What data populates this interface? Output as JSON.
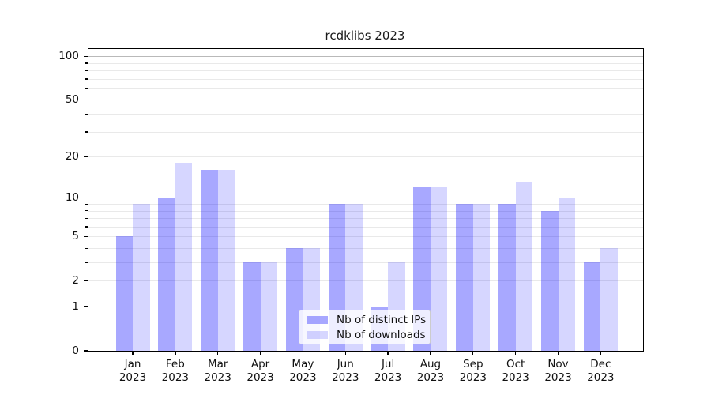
{
  "chart_data": {
    "type": "bar",
    "title": "rcdklibs 2023",
    "year": "2023",
    "categories": [
      "Jan",
      "Feb",
      "Mar",
      "Apr",
      "May",
      "Jun",
      "Jul",
      "Aug",
      "Sep",
      "Oct",
      "Nov",
      "Dec"
    ],
    "series": [
      {
        "name": "Nb of distinct IPs",
        "color": "rgba(0,0,255,0.34)",
        "values": [
          5,
          10,
          16,
          3,
          4,
          9,
          1,
          12,
          9,
          9,
          8,
          3
        ]
      },
      {
        "name": "Nb of downloads",
        "color": "rgba(0,0,255,0.16)",
        "values": [
          9,
          18,
          16,
          3,
          4,
          9,
          3,
          12,
          9,
          13,
          10,
          4
        ]
      }
    ],
    "yscale": "log10(1+v)",
    "ylim": [
      0,
      110
    ],
    "yticks": [
      0,
      1,
      2,
      5,
      10,
      20,
      50,
      100
    ],
    "major_gridlines": [
      1,
      10,
      100
    ],
    "minor_gridlines": [
      2,
      3,
      4,
      5,
      6,
      7,
      8,
      9,
      20,
      30,
      40,
      50,
      60,
      70,
      80,
      90
    ],
    "grid": true,
    "legend_position": "lower center",
    "colors": {
      "grid_major": "#b9b9b9",
      "grid_minor": "#e9e9e9",
      "axis": "#000000"
    }
  }
}
